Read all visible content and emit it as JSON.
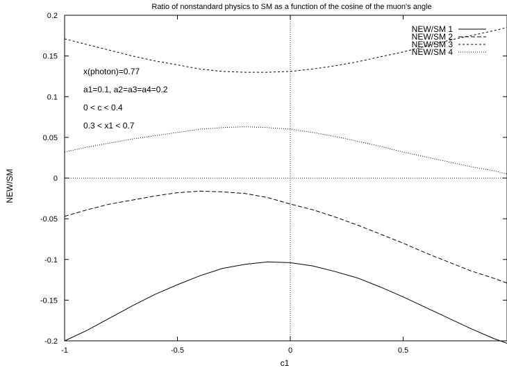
{
  "chart_data": {
    "type": "line",
    "title": "Ratio of nonstandard physics to SM as a function of the cosine of the muon's angle",
    "xlabel": "c1",
    "ylabel": "NEW/SM",
    "xlim": [
      -1,
      0.96
    ],
    "ylim": [
      -0.2,
      0.2
    ],
    "xticks": [
      -1,
      -0.5,
      0,
      0.5
    ],
    "xtick_labels": [
      "-1",
      "-0.5",
      "0",
      "0.5"
    ],
    "yticks": [
      -0.2,
      -0.15,
      -0.1,
      -0.05,
      0,
      0.05,
      0.1,
      0.15,
      0.2
    ],
    "ytick_labels": [
      "-0.2",
      "-0.15",
      "-0.1",
      "-0.05",
      "0",
      "0.05",
      "0.1",
      "0.15",
      "0.2"
    ],
    "grid": false,
    "zero_lines": true,
    "legend_position": "top-right",
    "annotations": [
      "x(photon)=0.77",
      "a1=0.1, a2=a3=a4=0.2",
      "0 < c < 0.4",
      "0.3 < x1 < 0.7"
    ],
    "series": [
      {
        "name": "NEW/SM 1",
        "dash": "solid",
        "x": [
          -1,
          -0.9,
          -0.8,
          -0.7,
          -0.6,
          -0.5,
          -0.4,
          -0.3,
          -0.2,
          -0.1,
          0,
          0.1,
          0.2,
          0.3,
          0.4,
          0.5,
          0.6,
          0.7,
          0.8,
          0.9,
          0.96
        ],
        "y": [
          -0.2,
          -0.187,
          -0.172,
          -0.157,
          -0.143,
          -0.131,
          -0.12,
          -0.111,
          -0.106,
          -0.103,
          -0.104,
          -0.108,
          -0.115,
          -0.123,
          -0.134,
          -0.146,
          -0.159,
          -0.172,
          -0.185,
          -0.197,
          -0.203
        ]
      },
      {
        "name": "NEW/SM 2",
        "dash": "dashed",
        "x": [
          -1,
          -0.9,
          -0.8,
          -0.7,
          -0.6,
          -0.5,
          -0.4,
          -0.3,
          -0.2,
          -0.1,
          0,
          0.1,
          0.2,
          0.3,
          0.4,
          0.5,
          0.6,
          0.7,
          0.8,
          0.9,
          0.96
        ],
        "y": [
          -0.047,
          -0.039,
          -0.032,
          -0.027,
          -0.022,
          -0.018,
          -0.016,
          -0.017,
          -0.019,
          -0.024,
          -0.032,
          -0.039,
          -0.048,
          -0.058,
          -0.069,
          -0.08,
          -0.092,
          -0.103,
          -0.114,
          -0.123,
          -0.129
        ]
      },
      {
        "name": "NEW/SM 3",
        "dash": "short-dash",
        "x": [
          -1,
          -0.9,
          -0.8,
          -0.7,
          -0.6,
          -0.5,
          -0.4,
          -0.3,
          -0.2,
          -0.1,
          0,
          0.1,
          0.2,
          0.3,
          0.4,
          0.5,
          0.6,
          0.7,
          0.8,
          0.9,
          0.96
        ],
        "y": [
          0.171,
          0.164,
          0.157,
          0.15,
          0.144,
          0.139,
          0.134,
          0.131,
          0.13,
          0.13,
          0.131,
          0.134,
          0.138,
          0.143,
          0.149,
          0.155,
          0.162,
          0.169,
          0.175,
          0.181,
          0.185
        ]
      },
      {
        "name": "NEW/SM 4",
        "dash": "dotted",
        "x": [
          -1,
          -0.9,
          -0.8,
          -0.7,
          -0.6,
          -0.5,
          -0.4,
          -0.3,
          -0.2,
          -0.1,
          0,
          0.1,
          0.2,
          0.3,
          0.4,
          0.5,
          0.6,
          0.7,
          0.8,
          0.9,
          0.96
        ],
        "y": [
          0.032,
          0.038,
          0.043,
          0.048,
          0.052,
          0.056,
          0.06,
          0.062,
          0.063,
          0.062,
          0.06,
          0.056,
          0.051,
          0.045,
          0.039,
          0.032,
          0.026,
          0.02,
          0.014,
          0.009,
          0.005
        ]
      }
    ]
  }
}
